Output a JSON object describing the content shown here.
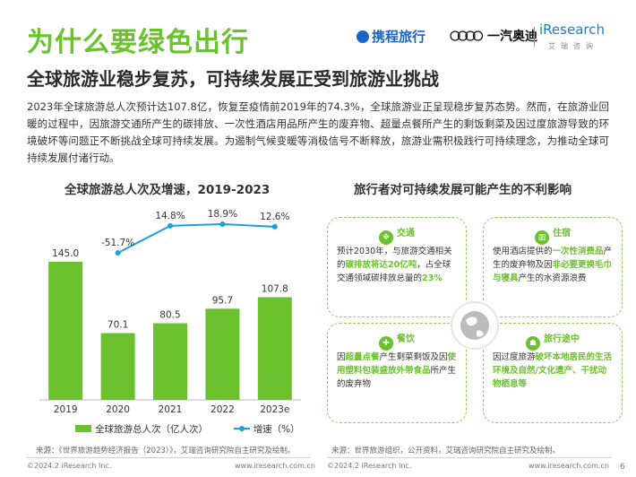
{
  "header": {
    "title": "为什么要绿色出行",
    "subtitle": "全球旅游业稳步复苏，可持续发展正受到旅游业挑战"
  },
  "logos": {
    "ctrip": "携程旅行",
    "faw": "一汽奥迪",
    "iresearch": "iResearch",
    "iresearch_sub": "艾瑞咨询"
  },
  "intro": "2023年全球旅游总人次预计达107.8亿，恢复至疫情前2019年的74.3%，全球旅游业正呈现稳步复苏态势。然而，在旅游业回暖的过程中，因旅游交通所产生的碳排放、一次性酒店用品所产生的废弃物、超量点餐所产生的剩饭剩菜及因过度旅游导致的环境破坏等问题正不断挑战全球可持续发展。为遏制气候变暖等消极信号不断释放，旅游业需积极践行可持续理念，为推动全球可持续发展付诸行动。",
  "left_section": {
    "title": "全球旅游总人次及增速，2019-2023",
    "legend_bar": "全球旅游总人次（亿人次）",
    "legend_line": "增速（%）",
    "source": "来源：《世界旅游趋势经济报告（2023）》，艾瑞咨询研究院自主研究及绘制。",
    "colors": {
      "bar": "#6cc12f",
      "line": "#1a9fe0"
    }
  },
  "chart_data": {
    "type": "bar",
    "categories": [
      "2019",
      "2020",
      "2021",
      "2022",
      "2023e"
    ],
    "series": [
      {
        "name": "全球旅游总人次（亿人次）",
        "type": "bar",
        "values": [
          145.0,
          70.1,
          80.5,
          95.7,
          107.8
        ],
        "labels": [
          "145.0",
          "70.1",
          "80.5",
          "95.7",
          "107.8"
        ]
      },
      {
        "name": "增速（%）",
        "type": "line",
        "values": [
          null,
          -51.7,
          14.8,
          18.9,
          12.6
        ],
        "labels": [
          "",
          "-51.7%",
          "14.8%",
          "18.9%",
          "12.6%"
        ]
      }
    ]
  },
  "right_section": {
    "title": "旅行者对可持续发展可能产生的不利影响",
    "source": "来源：世界旅游组织，公开资料，艾瑞咨询研究院自主研究及绘制。",
    "cards": [
      {
        "title": "交通",
        "icon": "traffic-icon",
        "pre": "预计2030年，与旅游交通相关的",
        "hl1": "碳排放将达20亿吨",
        "mid": "，占全球交通领域碳排放总量的",
        "hl2": "23%",
        "post": ""
      },
      {
        "title": "住宿",
        "icon": "hotel-icon",
        "pre": "使用酒店提供的",
        "hl1": "一次性消费品",
        "mid": "产生的废弃物及因",
        "hl2": "非必要更换毛巾与寝具",
        "post": "产生的水资源浪费"
      },
      {
        "title": "餐饮",
        "icon": "dining-icon",
        "pre": "因",
        "hl1": "超量点餐",
        "mid": "产生剩菜剩饭及因",
        "hl2": "使用塑料包装盛放外带食品",
        "post": "所产生的废弃物"
      },
      {
        "title": "旅行途中",
        "icon": "traveler-icon",
        "pre": "因过度旅游",
        "hl1": "破坏本地居民的生活环境及自然/文化遗产、干扰动物栖息等",
        "mid": "",
        "hl2": "",
        "post": ""
      }
    ]
  },
  "footer": {
    "copyright_left": "©2024.2 iResearch Inc.",
    "url_left": "www.iresearch.com.cn",
    "copyright_right": "©2024.2 iResearch Inc.",
    "url_right": "www.iresearch.com.cn",
    "page": "6"
  }
}
